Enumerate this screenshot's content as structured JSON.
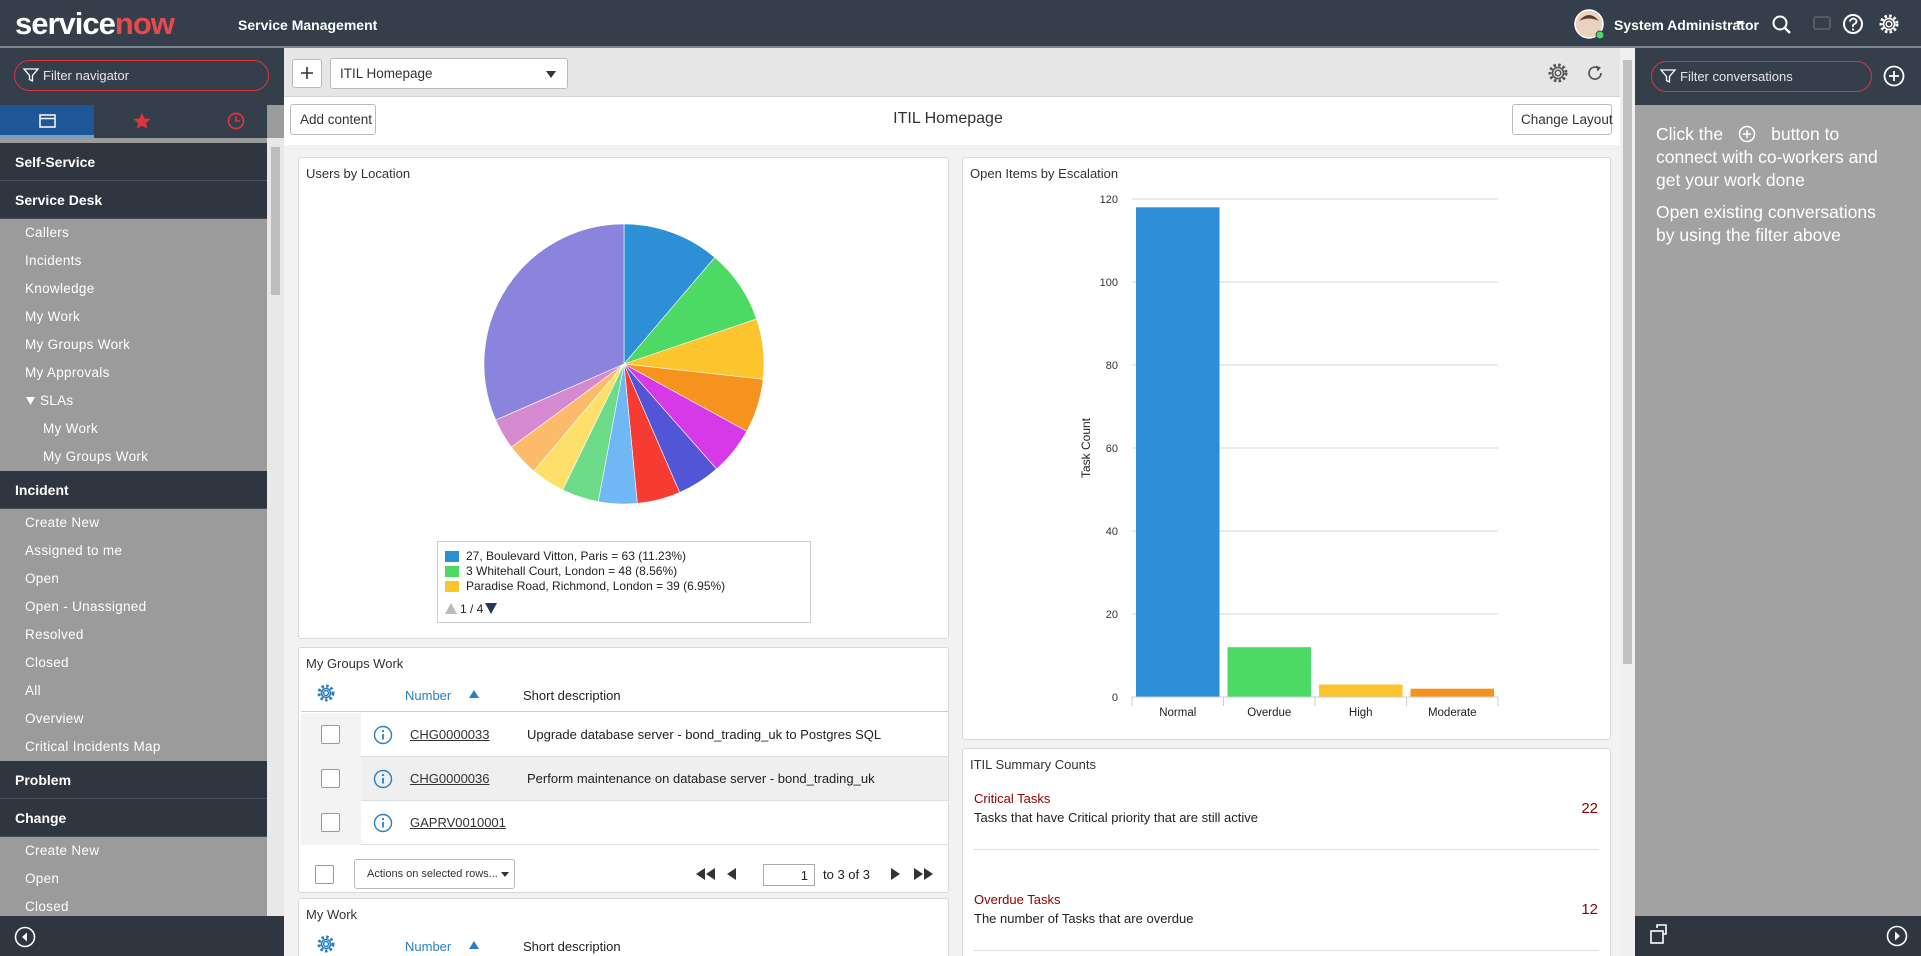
{
  "header": {
    "logo": [
      "service",
      "now"
    ],
    "product": "Service Management",
    "user": "System Administrator"
  },
  "navigator": {
    "filter": "Filter navigator",
    "sections": [
      {
        "title": "Self-Service"
      },
      {
        "title": "Service Desk",
        "items": [
          "Callers",
          "Incidents",
          "Knowledge",
          "My Work",
          "My Groups Work",
          "My Approvals",
          {
            "title": "SLAs",
            "items": [
              "My Work",
              "My Groups Work"
            ]
          }
        ]
      },
      {
        "title": "Incident",
        "items": [
          "Create New",
          "Assigned to me",
          "Open",
          "Open - Unassigned",
          "Resolved",
          "Closed",
          "All",
          "Overview",
          "Critical Incidents Map"
        ]
      },
      {
        "title": "Problem"
      },
      {
        "title": "Change",
        "items": [
          "Create New",
          "Open",
          "Closed"
        ]
      }
    ]
  },
  "toolbar": {
    "dashboard": "ITIL Homepage",
    "add_content": "Add content",
    "title": "ITIL Homepage",
    "change_layout": "Change Layout"
  },
  "chart_data": [
    {
      "type": "pie",
      "title": "Users by Location",
      "categories": [
        "27, Boulevard Vitton, Paris",
        "3 Whitehall Court, London",
        "Paradise Road, Richmond, London",
        null,
        null,
        null,
        null,
        null,
        null,
        null,
        null,
        null,
        null
      ],
      "values": [
        63,
        48,
        39,
        35,
        31,
        28,
        28,
        25,
        24,
        22,
        21,
        20,
        177
      ],
      "value_labels": [
        "= 63 (11.23%)",
        "= 48 (8.56%)",
        "= 39 (6.95%)",
        null,
        null,
        null,
        null,
        null,
        null,
        null,
        null,
        null,
        null
      ],
      "colors": [
        "#2d8fd5",
        "#4cd964",
        "#fcc42d",
        "#f6931e",
        "#d63ae8",
        "#5256d6",
        "#f63c32",
        "#6fb8f5",
        "#6ddc8a",
        "#fde06b",
        "#fbbb6a",
        "#d58ad0",
        "#8a84dc"
      ],
      "legend_page": "1 / 4"
    },
    {
      "type": "bar",
      "title": "Open Items by Escalation",
      "categories": [
        "Normal",
        "Overdue",
        "High",
        "Moderate"
      ],
      "values": [
        118,
        12,
        3,
        2
      ],
      "colors": [
        "#2d8fd5",
        "#4cd964",
        "#fcc42d",
        "#f6931e"
      ],
      "ylabel": "Task Count",
      "ylim": [
        0,
        120
      ],
      "yticks": [
        0,
        20,
        40,
        60,
        80,
        100,
        120
      ],
      "grid": true
    }
  ],
  "my_groups_work": {
    "title": "My Groups Work",
    "columns": [
      "Number",
      "Short description"
    ],
    "rows": [
      {
        "number": "CHG0000033",
        "description": "Upgrade database server - bond_trading_uk to Postgres SQL"
      },
      {
        "number": "CHG0000036",
        "description": "Perform maintenance on database server - bond_trading_uk"
      },
      {
        "number": "GAPRV0010001"
      }
    ],
    "actions": "Actions on selected rows...",
    "page": "1",
    "range": "to 3 of 3"
  },
  "my_work": {
    "title": "My Work",
    "columns": [
      "Number",
      "Short description"
    ]
  },
  "summary": {
    "title": "ITIL Summary Counts",
    "items": [
      {
        "title": "Critical Tasks",
        "description": "Tasks that have Critical priority that are still active",
        "count": 22
      },
      {
        "title": "Overdue Tasks",
        "description": "The number of Tasks that are overdue",
        "count": 12
      }
    ]
  },
  "conversations": {
    "filter": "Filter conversations",
    "help": [
      "Click the",
      "button to connect with co-workers and get your work done"
    ],
    "hint": "Open existing conversations by using the filter above"
  }
}
